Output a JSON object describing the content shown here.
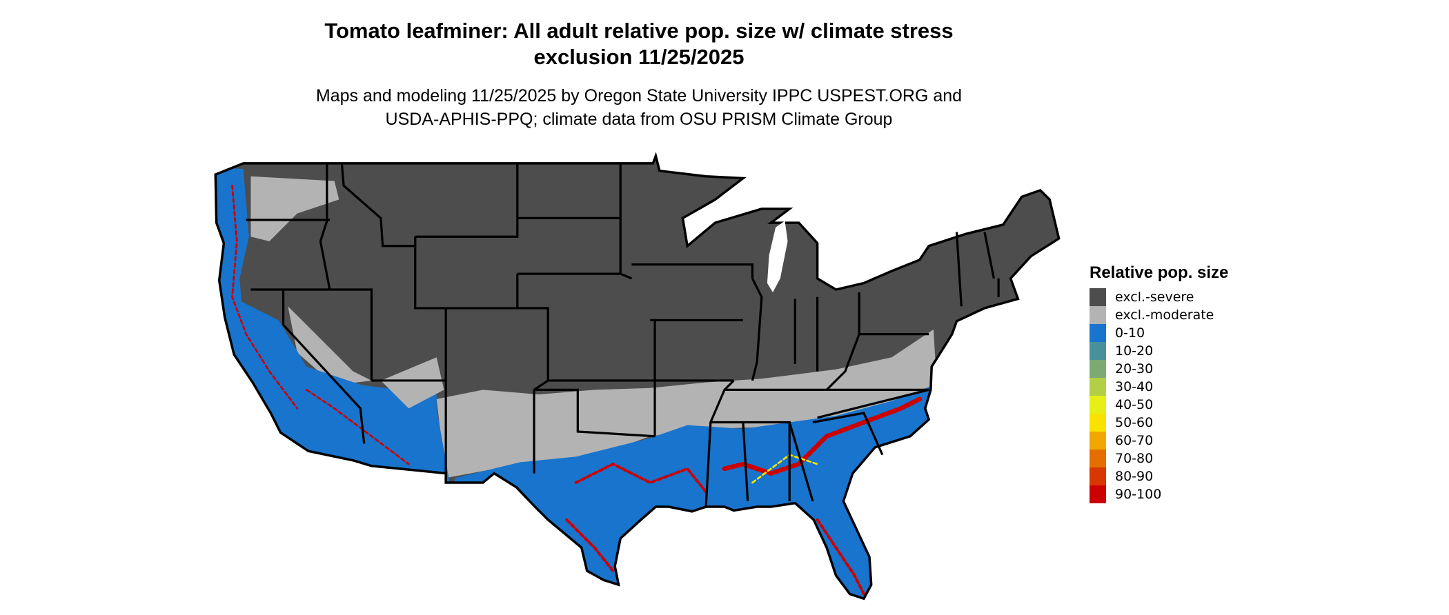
{
  "title_line1": "Tomato leafminer: All adult relative pop. size w/ climate stress",
  "title_line2": "exclusion 11/25/2025",
  "subtitle_line1": "Maps and modeling 11/25/2025 by Oregon State University IPPC USPEST.ORG and",
  "subtitle_line2": "USDA-APHIS-PPQ; climate data from OSU PRISM Climate Group",
  "legend": {
    "title": "Relative pop. size",
    "items": [
      {
        "label": "excl.-severe",
        "color": "#4d4d4d"
      },
      {
        "label": "excl.-moderate",
        "color": "#b3b3b3"
      },
      {
        "label": "0-10",
        "color": "#1874cd"
      },
      {
        "label": "10-20",
        "color": "#48919b"
      },
      {
        "label": "20-30",
        "color": "#7bab72"
      },
      {
        "label": "30-40",
        "color": "#b2cf45"
      },
      {
        "label": "40-50",
        "color": "#e6ef16"
      },
      {
        "label": "50-60",
        "color": "#f9e100"
      },
      {
        "label": "60-70",
        "color": "#f0a800"
      },
      {
        "label": "70-80",
        "color": "#e46f00"
      },
      {
        "label": "80-90",
        "color": "#d93700"
      },
      {
        "label": "90-100",
        "color": "#cd0000"
      }
    ]
  }
}
